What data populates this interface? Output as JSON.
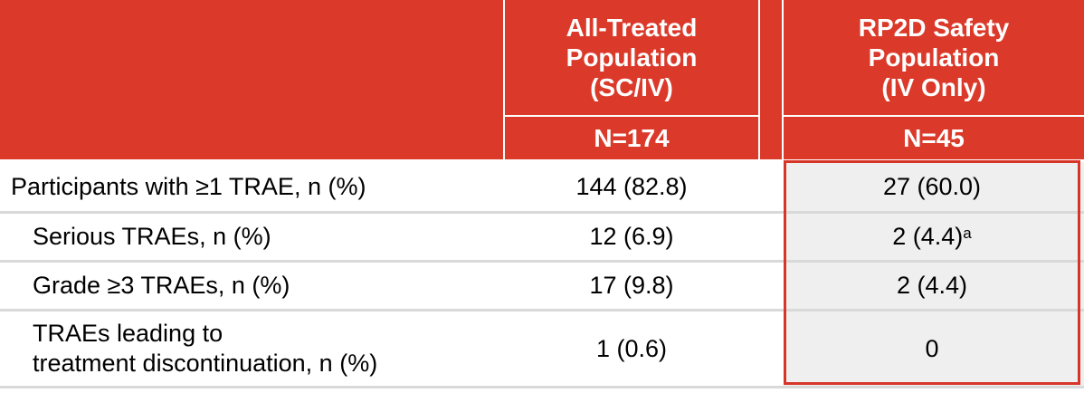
{
  "header": {
    "col1_title": "All-Treated\nPopulation\n(SC/IV)",
    "col2_title": "RP2D Safety\nPopulation\n(IV Only)",
    "col1_n": "N=174",
    "col2_n": "N=45"
  },
  "rows": [
    {
      "label": "Participants with ≥1 TRAE, n (%)",
      "col1": "144 (82.8)",
      "col2": "27 (60.0)",
      "col2_sup": ""
    },
    {
      "label": "Serious TRAEs, n (%)",
      "col1": "12 (6.9)",
      "col2": "2 (4.4)",
      "col2_sup": "a"
    },
    {
      "label": "Grade ≥3 TRAEs, n (%)",
      "col1": "17 (9.8)",
      "col2": "2 (4.4)",
      "col2_sup": ""
    },
    {
      "label": "TRAEs leading to\ntreatment discontinuation, n (%)",
      "col1": "1 (0.6)",
      "col2": "0",
      "col2_sup": ""
    }
  ],
  "colors": {
    "header_red": "#db3a2a",
    "highlight_border": "#d8352a",
    "row_line": "#d9d9d9",
    "shaded_cell": "#efefef"
  }
}
